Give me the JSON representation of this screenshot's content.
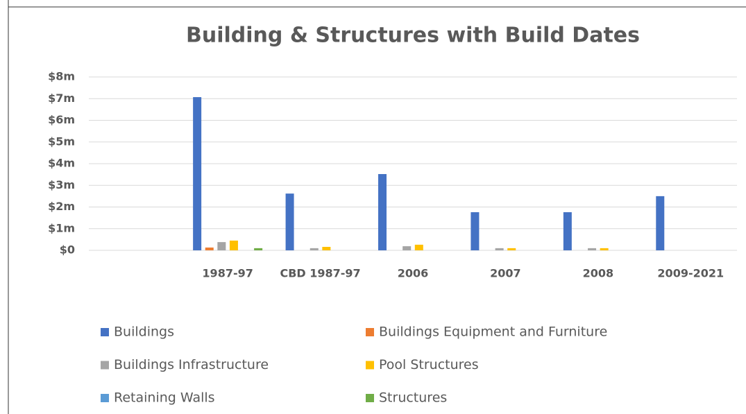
{
  "chart_data": {
    "type": "bar",
    "title": "Building & Structures with Build Dates",
    "categories": [
      null,
      "1987-97",
      "CBD 1987-97",
      "2006",
      "2007",
      "2008",
      "2009-2021"
    ],
    "series": [
      {
        "name": "Buildings",
        "color": "#4472c4",
        "values": [
          null,
          7.07,
          2.62,
          3.52,
          1.76,
          1.76,
          2.5
        ]
      },
      {
        "name": "Buildings Equipment and Furniture",
        "color": "#ed7d31",
        "values": [
          null,
          0.13,
          0,
          0,
          0,
          0,
          0
        ]
      },
      {
        "name": "Buildings Infrastructure",
        "color": "#a5a5a5",
        "values": [
          null,
          0.38,
          0.1,
          0.19,
          0.1,
          0.1,
          0
        ]
      },
      {
        "name": "Pool Structures",
        "color": "#ffc000",
        "values": [
          null,
          0.45,
          0.16,
          0.26,
          0.1,
          0.1,
          0
        ]
      },
      {
        "name": "Retaining Walls",
        "color": "#5b9bd5",
        "values": [
          null,
          0,
          0,
          0,
          0,
          0,
          0
        ]
      },
      {
        "name": "Structures",
        "color": "#70ad47",
        "values": [
          null,
          0.1,
          0,
          0,
          0,
          0,
          0
        ]
      }
    ],
    "ylim": [
      0,
      8
    ],
    "yticks": [
      {
        "value": 0,
        "label": "$0"
      },
      {
        "value": 1,
        "label": "$1m"
      },
      {
        "value": 2,
        "label": "$2m"
      },
      {
        "value": 3,
        "label": "$3m"
      },
      {
        "value": 4,
        "label": "$4m"
      },
      {
        "value": 5,
        "label": "$5m"
      },
      {
        "value": 6,
        "label": "$6m"
      },
      {
        "value": 7,
        "label": "$7m"
      },
      {
        "value": 8,
        "label": "$8m"
      }
    ],
    "grid": true,
    "legend": "bottom"
  }
}
